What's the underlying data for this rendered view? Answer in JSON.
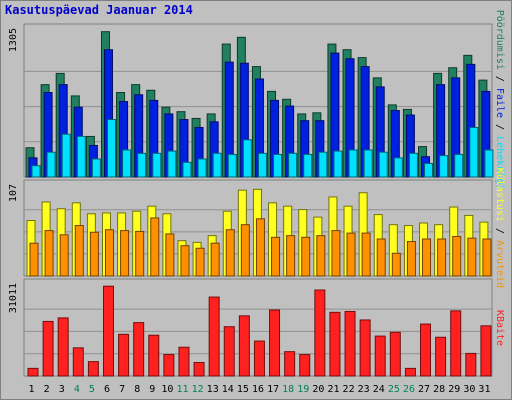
{
  "title": "Kasutuspäevad Jaanuar 2014",
  "colors": {
    "background": "#c0c0c0",
    "panel": "#c0c0c0",
    "grid": "#909090",
    "title": "#0000cc",
    "hits": "#208060",
    "files": "#0020e0",
    "pages": "#00e0ff",
    "visits": "#ffff20",
    "sites": "#ff9000",
    "kbytes": "#ff2020",
    "weekend_label": "#00805c",
    "weekday_label": "#000000"
  },
  "right_labels": {
    "top": [
      "Pöördumisi",
      "Faile",
      "Lehekülgi"
    ],
    "middle": [
      "Külastusi",
      "Arvuteid"
    ],
    "bottom": [
      "KBaite"
    ]
  },
  "x_labels": [
    "1",
    "2",
    "3",
    "4",
    "5",
    "6",
    "7",
    "8",
    "9",
    "10",
    "11",
    "12",
    "13",
    "14",
    "15",
    "16",
    "17",
    "18",
    "19",
    "20",
    "21",
    "22",
    "23",
    "24",
    "25",
    "26",
    "27",
    "28",
    "29",
    "30",
    "31"
  ],
  "weekend_days": [
    4,
    5,
    11,
    12,
    18,
    19,
    25,
    26
  ],
  "chart_data": [
    {
      "type": "bar",
      "name": "hits-files-pages",
      "ymax_label": "1305",
      "ylim": [
        0,
        1305
      ],
      "categories": [
        "1",
        "2",
        "3",
        "4",
        "5",
        "6",
        "7",
        "8",
        "9",
        "10",
        "11",
        "12",
        "13",
        "14",
        "15",
        "16",
        "17",
        "18",
        "19",
        "20",
        "21",
        "22",
        "23",
        "24",
        "25",
        "26",
        "27",
        "28",
        "29",
        "30",
        "31"
      ],
      "series": [
        {
          "name": "Pöördumisi",
          "values": [
            260,
            820,
            920,
            720,
            360,
            1290,
            750,
            820,
            770,
            620,
            580,
            520,
            560,
            1180,
            1240,
            980,
            760,
            690,
            560,
            570,
            1180,
            1130,
            1060,
            880,
            640,
            600,
            270,
            920,
            970,
            1080,
            860
          ]
        },
        {
          "name": "Faile",
          "values": [
            170,
            750,
            820,
            620,
            280,
            1130,
            670,
            730,
            680,
            560,
            510,
            440,
            490,
            1020,
            1010,
            870,
            680,
            630,
            500,
            500,
            1100,
            1050,
            980,
            800,
            590,
            550,
            180,
            820,
            880,
            1000,
            760
          ]
        },
        {
          "name": "Lehekülgi",
          "values": [
            100,
            220,
            380,
            360,
            160,
            510,
            240,
            210,
            210,
            230,
            130,
            160,
            210,
            200,
            330,
            210,
            200,
            210,
            200,
            220,
            230,
            240,
            240,
            220,
            170,
            210,
            120,
            190,
            200,
            440,
            240
          ]
        }
      ]
    },
    {
      "type": "bar",
      "name": "visits-sites",
      "ymax_label": "107",
      "ylim": [
        0,
        107
      ],
      "categories": [
        "1",
        "2",
        "3",
        "4",
        "5",
        "6",
        "7",
        "8",
        "9",
        "10",
        "11",
        "12",
        "13",
        "14",
        "15",
        "16",
        "17",
        "18",
        "19",
        "20",
        "21",
        "22",
        "23",
        "24",
        "25",
        "26",
        "27",
        "28",
        "29",
        "30",
        "31"
      ],
      "series": [
        {
          "name": "Külastusi",
          "values": [
            66,
            88,
            80,
            87,
            74,
            75,
            75,
            77,
            83,
            74,
            42,
            40,
            48,
            77,
            102,
            103,
            87,
            83,
            79,
            70,
            94,
            83,
            99,
            73,
            61,
            60,
            63,
            61,
            82,
            72,
            64
          ]
        },
        {
          "name": "Arvuteid",
          "values": [
            39,
            54,
            49,
            60,
            52,
            55,
            54,
            53,
            69,
            50,
            36,
            33,
            39,
            55,
            61,
            68,
            46,
            48,
            46,
            48,
            54,
            51,
            51,
            44,
            27,
            41,
            44,
            44,
            47,
            45,
            44
          ]
        }
      ]
    },
    {
      "type": "bar",
      "name": "kbytes",
      "ymax_label": "31011",
      "ylim": [
        0,
        31011
      ],
      "categories": [
        "1",
        "2",
        "3",
        "4",
        "5",
        "6",
        "7",
        "8",
        "9",
        "10",
        "11",
        "12",
        "13",
        "14",
        "15",
        "16",
        "17",
        "18",
        "19",
        "20",
        "21",
        "22",
        "23",
        "24",
        "25",
        "26",
        "27",
        "28",
        "29",
        "30",
        "31"
      ],
      "series": [
        {
          "name": "KBaite",
          "values": [
            2600,
            18600,
            19800,
            9600,
            4900,
            30600,
            14200,
            18200,
            13900,
            7300,
            9800,
            4600,
            26900,
            16800,
            20500,
            11900,
            22500,
            8300,
            7300,
            29300,
            21700,
            22000,
            19100,
            13600,
            14900,
            2600,
            17700,
            13200,
            22200,
            7700,
            17100
          ]
        }
      ]
    }
  ]
}
